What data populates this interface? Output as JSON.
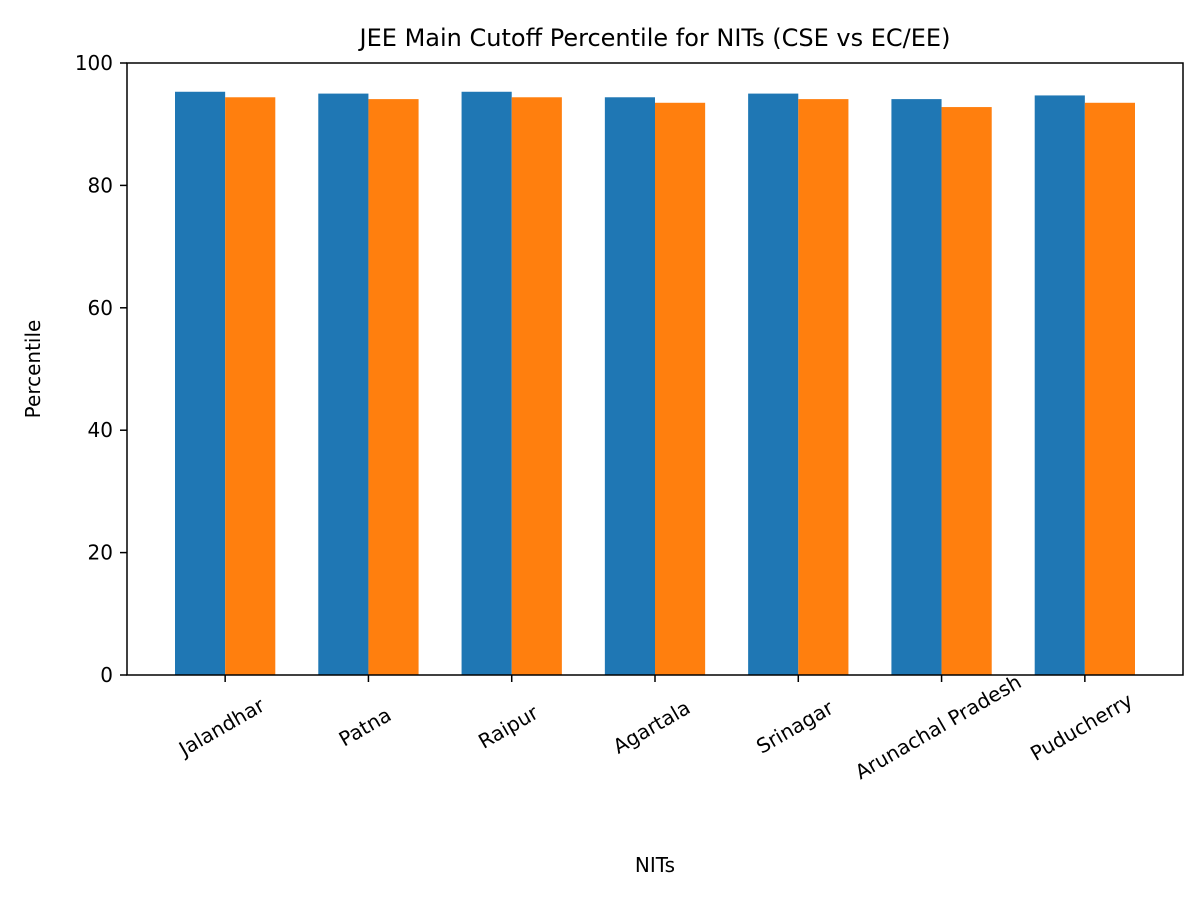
{
  "chart_data": {
    "type": "bar",
    "title": "JEE Main Cutoff Percentile for NITs (CSE vs EC/EE)",
    "xlabel": "NITs",
    "ylabel": "Percentile",
    "ylim": [
      0,
      100
    ],
    "yticks": [
      "0",
      "20",
      "40",
      "60",
      "80",
      "100"
    ],
    "categories": [
      "Jalandhar",
      "Patna",
      "Raipur",
      "Agartala",
      "Srinagar",
      "Arunachal Pradesh",
      "Puducherry"
    ],
    "series": [
      {
        "values": [
          95.3,
          95.0,
          95.3,
          94.4,
          95.0,
          94.1,
          94.7
        ],
        "color": "#1f77b4"
      },
      {
        "values": [
          94.4,
          94.1,
          94.4,
          93.5,
          94.1,
          92.8,
          93.5
        ],
        "color": "#ff7f0e"
      }
    ],
    "grid": false,
    "legend": "none",
    "xtick_rotation_deg": 30
  }
}
